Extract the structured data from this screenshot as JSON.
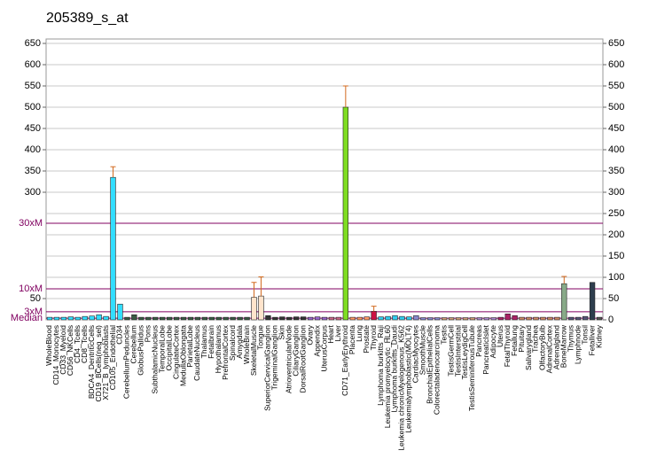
{
  "chart_data": {
    "type": "bar",
    "title": "205389_s_at",
    "categories": [
      "WholeBlood",
      "CD14_Monocytes",
      "CD33_Myeloid",
      "CD56_NKCells",
      "CD4_Tcells",
      "CD8_Tcells",
      "BDCA4_DentriticCells",
      "CD19_BCells(neg_sel)",
      "X721_B_lymphoblasts",
      "CD105_Endothelial",
      "CD34",
      "CerebellumPeduncles",
      "Cerebellum",
      "GlobusPallidus",
      "Pons",
      "SubthalamicNucleus",
      "TemporalLobe",
      "OccipitalLobe",
      "CingulateCortex",
      "MedullaOblongata",
      "ParietalLobe",
      "CaudateNucleus",
      "Thalamus",
      "Fetalbrain",
      "Hypothalamus",
      "PrefrontalCortex",
      "Spinalcord",
      "Amygdala",
      "WholeBrain",
      "SkeletalMuscle",
      "Tongue",
      "SuperiorCervicalGanglion",
      "TrigeminalGanglion",
      "Skin",
      "AtrioventricularNode",
      "CiliaryGanglion",
      "DorsalRootGanglion",
      "Ovary",
      "Appendix",
      "UterusCorpus",
      "Heart",
      "Liver",
      "CD71_EarlyErythroid",
      "Placenta",
      "Lung",
      "Prostate",
      "Thyroid",
      "Lymphoma burkitts_Raji",
      "Leukemia promyelocytic_HL60",
      "Lymphoma burkitts_Daudi",
      "Leukemia chronicMyelogenous_K562",
      "Leukemialymphoblastic(MOLT4)",
      "CardiacMyocytes",
      "SmoothMuscle",
      "BronchialEpithelialCells",
      "Colorectaladenocarcinoma",
      "Testis",
      "TestisGermCell",
      "TestisInterstitial",
      "TestisLeydigCell",
      "TestisSeminiferousTubule",
      "Pancreas",
      "PancreaticIslet",
      "Adipocyte",
      "Uterus",
      "FetalThyroid",
      "Fetallung",
      "Pituitary",
      "Salivarygland",
      "Trachea",
      "OlfactoryBulb",
      "AdrenalCortex",
      "Adrenalgland",
      "BoneMarrow",
      "Thymus",
      "Lymphnode",
      "Tonsil",
      "Fetalliver",
      "Kidney"
    ],
    "values": [
      6,
      6,
      6,
      7,
      6,
      8,
      9,
      12,
      8,
      335,
      37,
      6,
      12,
      6,
      6,
      6,
      6,
      6,
      6,
      6,
      6,
      6,
      6,
      6,
      6,
      6,
      6,
      6,
      6,
      53,
      56,
      10,
      6,
      7,
      6,
      7,
      7,
      6,
      7,
      6,
      6,
      6,
      500,
      6,
      6,
      7,
      20,
      7,
      8,
      10,
      8,
      7,
      10,
      5,
      5,
      5,
      5,
      5,
      5,
      5,
      5,
      5,
      5,
      5,
      6,
      14,
      10,
      6,
      6,
      6,
      6,
      6,
      6,
      85,
      6,
      6,
      8,
      88,
      6
    ],
    "errors": [
      null,
      null,
      null,
      null,
      null,
      null,
      null,
      null,
      null,
      25,
      null,
      null,
      null,
      null,
      null,
      null,
      null,
      null,
      null,
      null,
      null,
      null,
      null,
      null,
      null,
      null,
      null,
      null,
      null,
      35,
      45,
      null,
      null,
      null,
      null,
      null,
      null,
      null,
      null,
      null,
      null,
      null,
      50,
      null,
      null,
      null,
      12,
      null,
      null,
      null,
      null,
      null,
      null,
      null,
      null,
      null,
      null,
      null,
      null,
      null,
      null,
      null,
      null,
      null,
      null,
      null,
      null,
      null,
      null,
      null,
      null,
      null,
      null,
      17,
      null,
      null,
      null,
      null,
      null
    ],
    "colors": [
      "#33ddff",
      "#33ddff",
      "#33ddff",
      "#33ddff",
      "#33ddff",
      "#33ddff",
      "#33ddff",
      "#33ddff",
      "#33ddff",
      "#33ddff",
      "#33ddff",
      "#3a5a44",
      "#3a5a44",
      "#3a5a44",
      "#3a5a44",
      "#3a5a44",
      "#3a5a44",
      "#3a5a44",
      "#3a5a44",
      "#3a5a44",
      "#3a5a44",
      "#3a5a44",
      "#3a5a44",
      "#3a5a44",
      "#3a5a44",
      "#3a5a44",
      "#3a5a44",
      "#3a5a44",
      "#3a5a44",
      "#ffe4cc",
      "#ffe4cc",
      "#333333",
      "#333333",
      "#333333",
      "#333333",
      "#333333",
      "#333333",
      "#9966cc",
      "#9966cc",
      "#9966cc",
      "#cc6688",
      "#cc6688",
      "#7fdd22",
      "#ff9966",
      "#ff9966",
      "#ff9966",
      "#cc1144",
      "#33ccee",
      "#33ccee",
      "#33ccee",
      "#33ccee",
      "#33ccee",
      "#8888cc",
      "#8888cc",
      "#8888cc",
      "#8888cc",
      "#cc9977",
      "#cc9977",
      "#cc9977",
      "#cc9977",
      "#cc9977",
      "#aa88cc",
      "#aa88cc",
      "#aa88cc",
      "#aa2266",
      "#aa2266",
      "#aa2266",
      "#cc8866",
      "#cc8866",
      "#cc8866",
      "#cc8866",
      "#cc8866",
      "#cc8866",
      "#88aa88",
      "#555577",
      "#555577",
      "#555577",
      "#2e3e4e",
      "#555555"
    ],
    "ylim": [
      0,
      650
    ],
    "yticks": [
      50,
      300,
      350,
      400,
      450,
      500,
      550,
      600,
      650
    ],
    "y2lim": [
      0,
      650
    ],
    "y2ticks": [
      0,
      50,
      100,
      150,
      200,
      250,
      300,
      350,
      400,
      450,
      500,
      550,
      600,
      650
    ],
    "reference_lines": [
      {
        "label": "30xM",
        "value": 227
      },
      {
        "label": "10xM",
        "value": 73
      },
      {
        "label": "3xM",
        "value": 19
      },
      {
        "label": "Median",
        "value": 4
      }
    ],
    "grid": true
  }
}
